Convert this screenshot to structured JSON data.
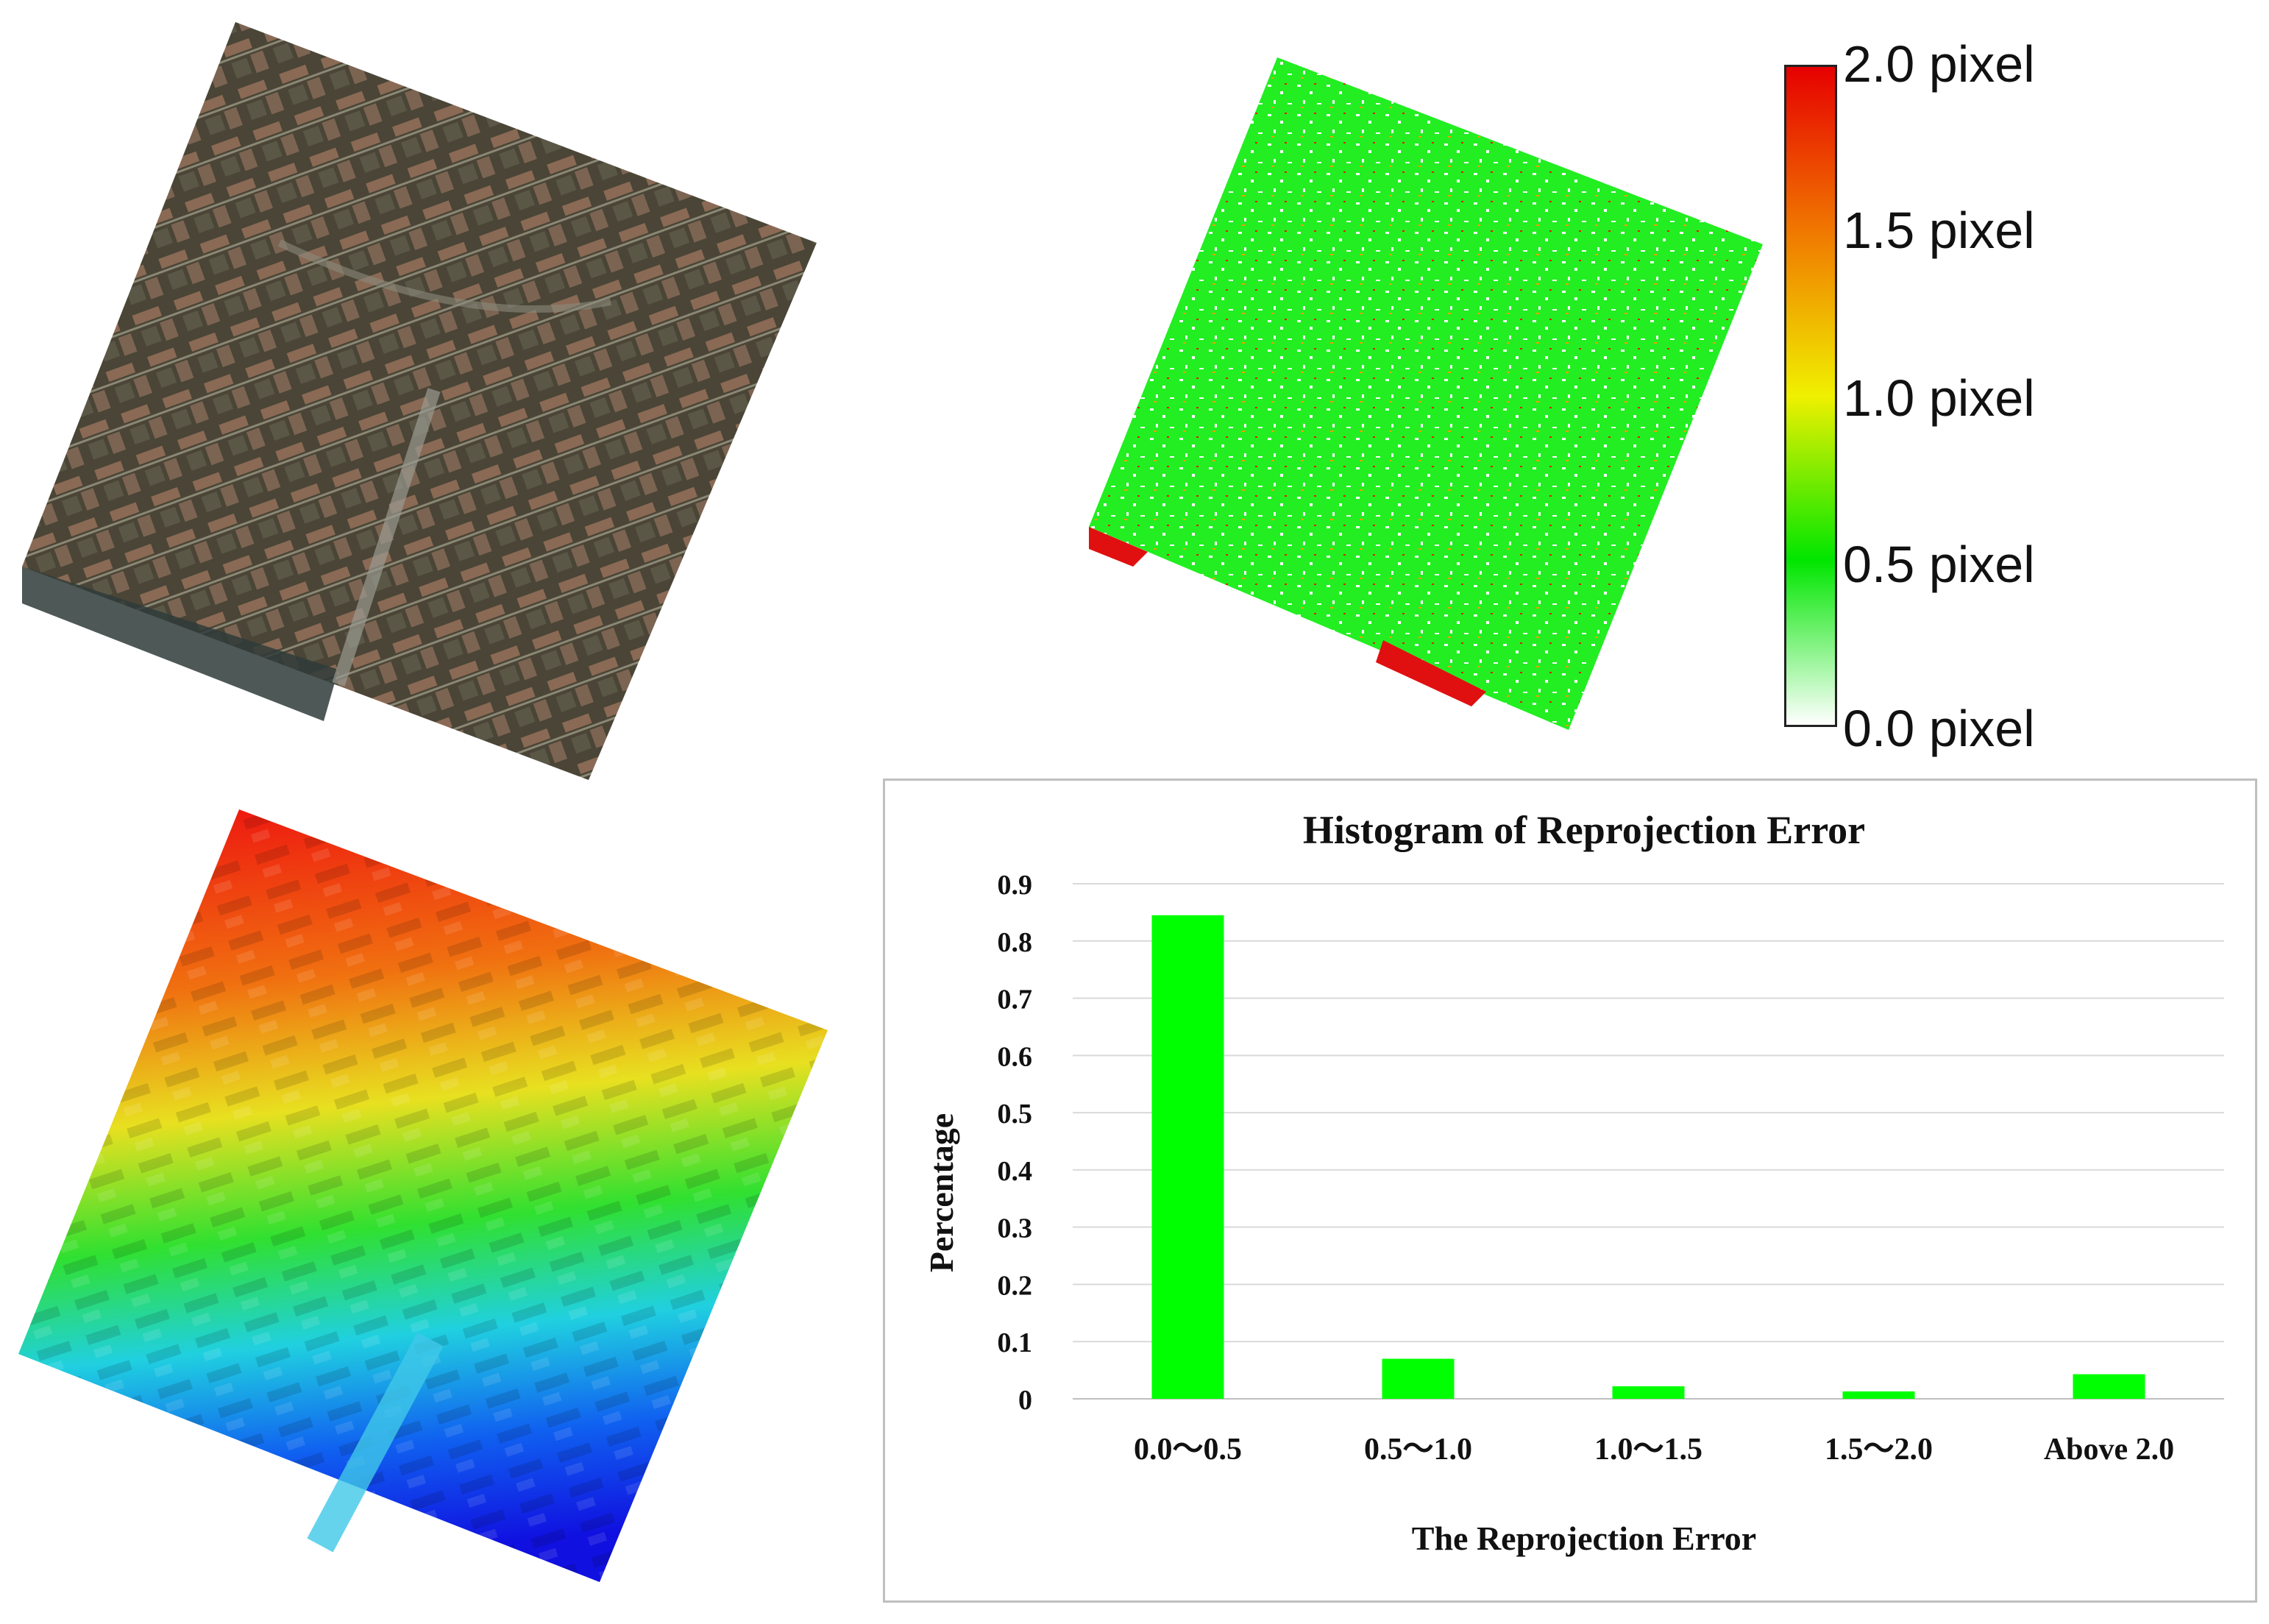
{
  "panels": {
    "ortho": {
      "icon": "orthophoto-image"
    },
    "error_map": {
      "icon": "reprojection-error-map"
    },
    "dsm": {
      "icon": "elevation-map"
    }
  },
  "colorbar": {
    "labels": [
      "2.0 pixel",
      "1.5 pixel",
      "1.0 pixel",
      "0.5 pixel",
      "0.0 pixel"
    ],
    "colors": [
      "#e60000",
      "#f07800",
      "#f0f000",
      "#00e600",
      "#ffffff"
    ]
  },
  "chart_data": {
    "type": "bar",
    "title": "Histogram of Reprojection Error",
    "xlabel": "The Reprojection Error",
    "ylabel": "Percentage",
    "categories": [
      "0.0～0.5",
      "0.5～1.0",
      "1.0～1.5",
      "1.5～2.0",
      "Above 2.0"
    ],
    "values": [
      0.845,
      0.07,
      0.022,
      0.013,
      0.043
    ],
    "ylim": [
      0,
      0.9
    ],
    "yticks": [
      "0",
      "0.1",
      "0.2",
      "0.3",
      "0.4",
      "0.5",
      "0.6",
      "0.7",
      "0.8",
      "0.9"
    ],
    "grid": true,
    "bar_color": "#00ff00"
  }
}
